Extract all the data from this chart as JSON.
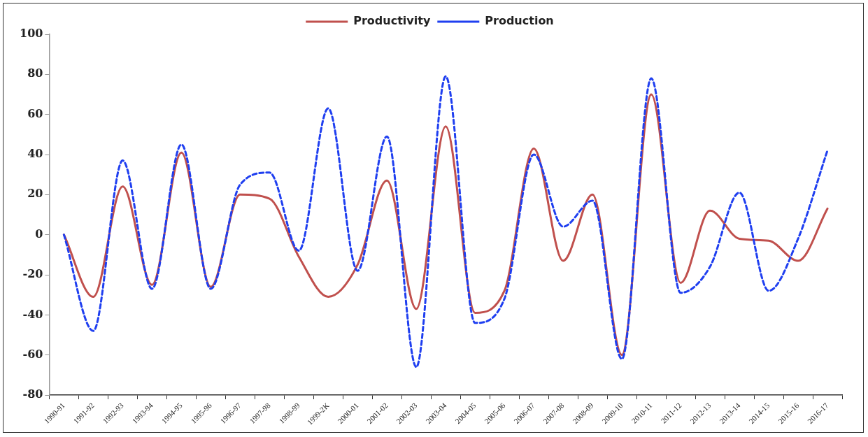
{
  "chart_data": {
    "type": "line",
    "categories": [
      "1990-91",
      "1991-92",
      "1992-93",
      "1993-94",
      "1994-95",
      "1995-96",
      "1996-97",
      "1997-98",
      "1998-99",
      "1999-2K",
      "2000-01",
      "2001-02",
      "2002-03",
      "2003-04",
      "2004-05",
      "2005-06",
      "2006-07",
      "2007-08",
      "2008-09",
      "2009-10",
      "2010-11",
      "2011-12",
      "2012-13",
      "2013-14",
      "2014-15",
      "2015-16",
      "2016-17"
    ],
    "series": [
      {
        "name": "Productivity",
        "color": "#c0504d",
        "line_style": "solid",
        "values": [
          0,
          -31,
          24,
          -25,
          41,
          -26,
          20,
          18,
          -11,
          -31,
          -15,
          27,
          -37,
          54,
          -39,
          -28,
          43,
          -13,
          20,
          -60,
          70,
          -24,
          12,
          -2,
          -3,
          -13,
          13
        ]
      },
      {
        "name": "Production",
        "color": "#1f3ff0",
        "line_style": "dashed",
        "values": [
          0,
          -48,
          37,
          -27,
          45,
          -27,
          25,
          31,
          -8,
          63,
          -18,
          49,
          -66,
          79,
          -44,
          -32,
          40,
          4,
          17,
          -62,
          78,
          -29,
          -16,
          21,
          -28,
          -2,
          42
        ]
      }
    ],
    "ylim": [
      -80,
      100
    ],
    "yticks": [
      -80,
      -60,
      -40,
      -20,
      0,
      20,
      40,
      60,
      80,
      100
    ],
    "grid": false,
    "legend": "top",
    "marker": "none"
  }
}
